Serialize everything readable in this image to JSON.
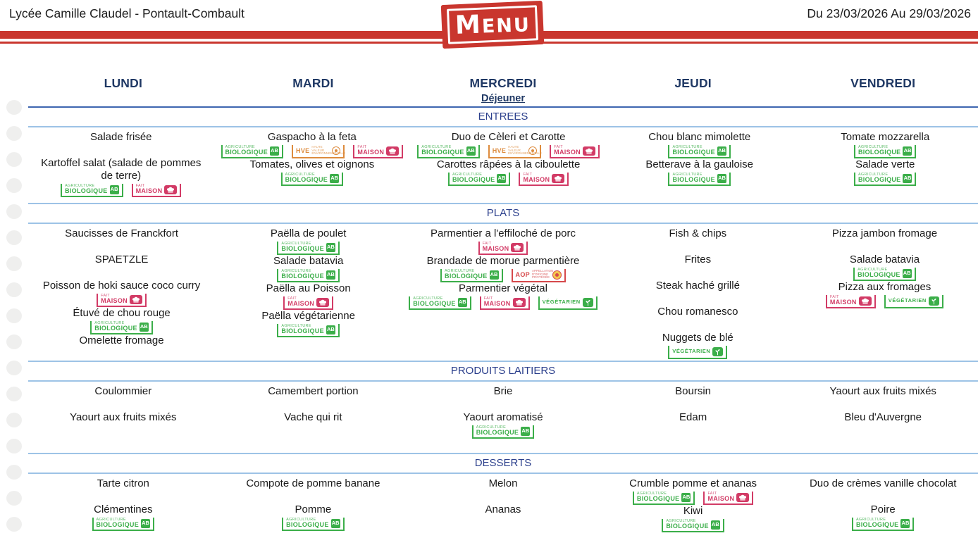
{
  "header": {
    "school": "Lycée Camille Claudel - Pontault-Combault",
    "date_range": "Du 23/03/2026 Au 29/03/2026",
    "logo_text": "MENU"
  },
  "meal_label": "Déjeuner",
  "days": [
    "LUNDI",
    "MARDI",
    "MERCREDI",
    "JEUDI",
    "VENDREDI"
  ],
  "colors": {
    "stripe_red": "#C9362E",
    "day_navy": "#1F3864",
    "section_blue": "#2B3F8C",
    "rule_light_blue": "#9DC3E6",
    "rule_strong_blue": "#3E66B0",
    "bio_green": "#3BAE49",
    "fait_maison_pink": "#D23B66",
    "hve_orange": "#DD8B3D",
    "aop_red": "#D6494B"
  },
  "badges": {
    "bio": {
      "line1": "AGRICULTURE",
      "line2": "BIOLOGIQUE",
      "icon": "ab-logo",
      "icon_text": "AB",
      "color": "#3BAE49"
    },
    "fait_maison": {
      "line1": "FAIT",
      "line2": "MAISON",
      "icon": "chef-hat",
      "color": "#D23B66"
    },
    "hve": {
      "word": "HVE",
      "small": "HAUTE VALEUR ENVIRONNEMENTALE",
      "icon": "hve-seal",
      "color": "#DD8B3D"
    },
    "aop": {
      "word": "AOP",
      "small": "APPELLATION D'ORIGINE PROTÉGÉE",
      "icon": "aop-seal",
      "color": "#D6494B"
    },
    "vegetarien": {
      "word": "VÉGÉTARIEN",
      "icon": "plant",
      "color": "#3BAE49"
    }
  },
  "sections": [
    {
      "id": "entrees",
      "title": "ENTREES",
      "columns": [
        [
          {
            "name": "Salade frisée",
            "badges": []
          },
          {
            "name": "Kartoffel salat (salade de pommes de terre)",
            "badges": [
              "bio",
              "fait_maison"
            ]
          }
        ],
        [
          {
            "name": "Gaspacho à la feta",
            "badges": [
              "bio",
              "hve",
              "fait_maison"
            ]
          },
          {
            "name": "Tomates, olives et oignons",
            "badges": [
              "bio"
            ]
          }
        ],
        [
          {
            "name": "Duo de Cèleri et Carotte",
            "badges": [
              "bio",
              "hve",
              "fait_maison"
            ]
          },
          {
            "name": "Carottes râpées à la ciboulette",
            "badges": [
              "bio",
              "fait_maison"
            ]
          }
        ],
        [
          {
            "name": "Chou blanc mimolette",
            "badges": [
              "bio"
            ]
          },
          {
            "name": "Betterave à la gauloise",
            "badges": [
              "bio"
            ]
          }
        ],
        [
          {
            "name": "Tomate mozzarella",
            "badges": [
              "bio"
            ]
          },
          {
            "name": "Salade verte",
            "badges": [
              "bio"
            ]
          }
        ]
      ]
    },
    {
      "id": "plats",
      "title": "PLATS",
      "columns": [
        [
          {
            "name": "Saucisses de Franckfort",
            "badges": []
          },
          {
            "name": "SPAETZLE",
            "badges": []
          },
          {
            "name": "Poisson de hoki sauce coco curry",
            "badges": [
              "fait_maison"
            ]
          },
          {
            "name": "Étuvé de chou rouge",
            "badges": [
              "bio"
            ]
          },
          {
            "name": "Omelette fromage",
            "badges": []
          }
        ],
        [
          {
            "name": "Paëlla de poulet",
            "badges": [
              "bio"
            ]
          },
          {
            "name": "Salade batavia",
            "badges": [
              "bio"
            ]
          },
          {
            "name": "Paëlla au Poisson",
            "badges": [
              "fait_maison"
            ]
          },
          {
            "name": "Paëlla végétarienne",
            "badges": [
              "bio"
            ]
          }
        ],
        [
          {
            "name": "Parmentier a l'effiloché de porc",
            "badges": [
              "fait_maison"
            ]
          },
          {
            "name": "Brandade de morue parmentière",
            "badges": [
              "bio",
              "aop"
            ]
          },
          {
            "name": "Parmentier végétal",
            "badges": [
              "bio",
              "fait_maison",
              "vegetarien"
            ]
          }
        ],
        [
          {
            "name": "Fish & chips",
            "badges": []
          },
          {
            "name": "Frites",
            "badges": []
          },
          {
            "name": "Steak haché grillé",
            "badges": []
          },
          {
            "name": "Chou romanesco",
            "badges": []
          },
          {
            "name": "Nuggets de blé",
            "badges": [
              "vegetarien"
            ]
          }
        ],
        [
          {
            "name": "Pizza jambon fromage",
            "badges": []
          },
          {
            "name": "Salade batavia",
            "badges": [
              "bio"
            ]
          },
          {
            "name": "Pizza aux fromages",
            "badges": [
              "fait_maison",
              "vegetarien"
            ]
          }
        ]
      ]
    },
    {
      "id": "laitiers",
      "title": "PRODUITS LAITIERS",
      "columns": [
        [
          {
            "name": "Coulommier",
            "badges": []
          },
          {
            "name": "Yaourt aux fruits mixés",
            "badges": []
          }
        ],
        [
          {
            "name": "Camembert portion",
            "badges": []
          },
          {
            "name": "Vache qui rit",
            "badges": []
          }
        ],
        [
          {
            "name": "Brie",
            "badges": []
          },
          {
            "name": "Yaourt aromatisé",
            "badges": [
              "bio"
            ]
          }
        ],
        [
          {
            "name": "Boursin",
            "badges": []
          },
          {
            "name": "Edam",
            "badges": []
          }
        ],
        [
          {
            "name": "Yaourt aux fruits mixés",
            "badges": []
          },
          {
            "name": "Bleu d'Auvergne",
            "badges": []
          }
        ]
      ]
    },
    {
      "id": "desserts",
      "title": "DESSERTS",
      "columns": [
        [
          {
            "name": "Tarte citron",
            "badges": []
          },
          {
            "name": "Clémentines",
            "badges": [
              "bio"
            ]
          }
        ],
        [
          {
            "name": "Compote de pomme banane",
            "badges": []
          },
          {
            "name": "Pomme",
            "badges": [
              "bio"
            ]
          }
        ],
        [
          {
            "name": "Melon",
            "badges": []
          },
          {
            "name": "Ananas",
            "badges": []
          }
        ],
        [
          {
            "name": "Crumble pomme et ananas",
            "badges": [
              "bio",
              "fait_maison"
            ]
          },
          {
            "name": "Kiwi",
            "badges": [
              "bio"
            ]
          }
        ],
        [
          {
            "name": "Duo de crèmes vanille chocolat",
            "badges": []
          },
          {
            "name": "Poire",
            "badges": [
              "bio"
            ]
          }
        ]
      ]
    }
  ]
}
